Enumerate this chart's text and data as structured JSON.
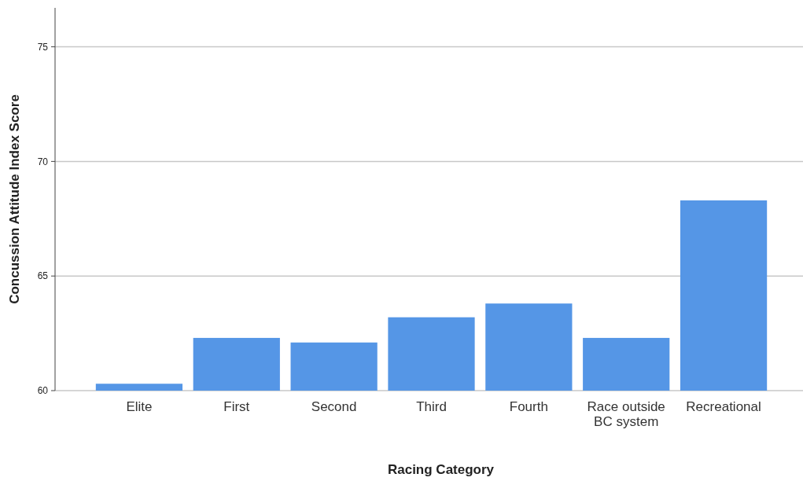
{
  "chart_data": {
    "type": "bar",
    "xlabel": "Racing Category",
    "ylabel": "Concussion Attitude Index Score",
    "categories": [
      "Elite",
      "First",
      "Second",
      "Third",
      "Fourth",
      "Race outside BC system",
      "Recreational"
    ],
    "values": [
      60.3,
      62.3,
      62.1,
      63.2,
      63.8,
      62.3,
      68.3
    ],
    "color": "#5596e6",
    "ylim": [
      60,
      76.7
    ],
    "yticks": [
      60,
      65,
      70,
      75
    ],
    "grid": "y"
  }
}
